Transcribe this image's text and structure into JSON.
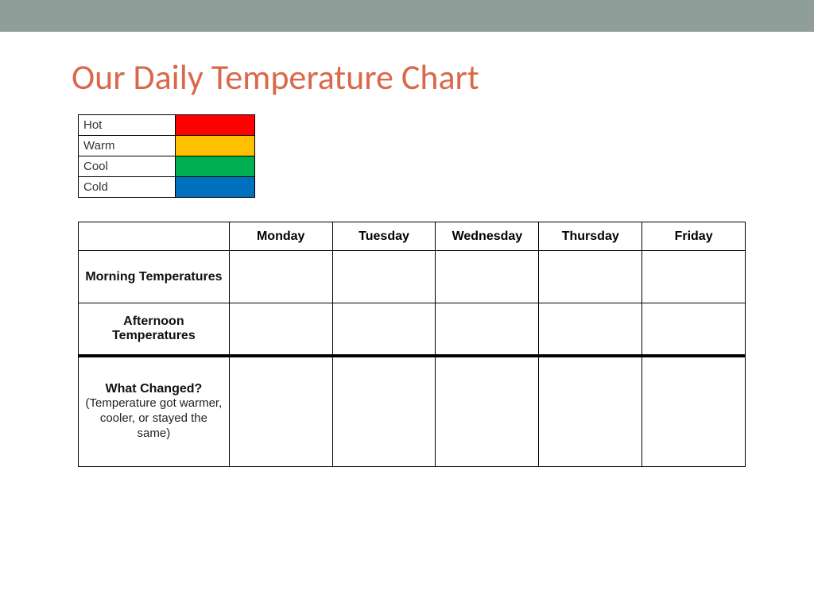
{
  "layout": {
    "topbar_color": "#8f9e99",
    "title_color": "#d9694a",
    "background": "#ffffff"
  },
  "title": "Our Daily Temperature Chart",
  "legend": {
    "rows": [
      {
        "label": "Hot",
        "color": "#ff0000"
      },
      {
        "label": "Warm",
        "color": "#ffc000"
      },
      {
        "label": "Cool",
        "color": "#00b050"
      },
      {
        "label": "Cold",
        "color": "#0070c0"
      }
    ]
  },
  "chart": {
    "columns": [
      "Monday",
      "Tuesday",
      "Wednesday",
      "Thursday",
      "Friday"
    ],
    "rows": [
      {
        "label": "Morning Temperatures",
        "sub": "",
        "cells": [
          "",
          "",
          "",
          "",
          ""
        ]
      },
      {
        "label": "Afternoon Temperatures",
        "sub": "",
        "cells": [
          "",
          "",
          "",
          "",
          ""
        ]
      },
      {
        "label": "What Changed?",
        "sub": "(Temperature got warmer, cooler, or stayed the same)",
        "cells": [
          "",
          "",
          "",
          "",
          ""
        ]
      }
    ]
  }
}
